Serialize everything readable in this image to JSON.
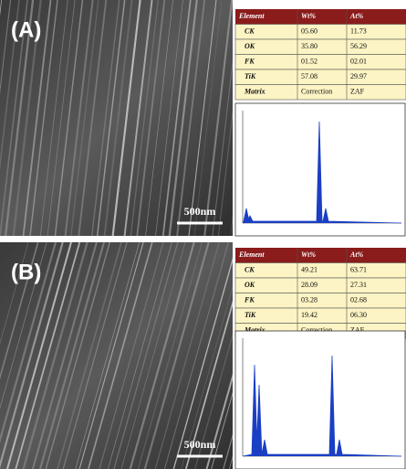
{
  "panels": [
    {
      "label": "(A)",
      "scale_bar": "500nm",
      "table": {
        "header": [
          "Element",
          "Wt%",
          "At%"
        ],
        "rows": [
          [
            "CK",
            "05.60",
            "11.73"
          ],
          [
            "OK",
            "35.80",
            "56.29"
          ],
          [
            "FK",
            "01.52",
            "02.01"
          ],
          [
            "TiK",
            "57.08",
            "29.97"
          ],
          [
            "Matrix",
            "Correction",
            "ZAF"
          ]
        ]
      }
    },
    {
      "label": "(B)",
      "scale_bar": "500nm",
      "table": {
        "header": [
          "Element",
          "Wt%",
          "At%"
        ],
        "rows": [
          [
            "CK",
            "49.21",
            "63.71"
          ],
          [
            "OK",
            "28.09",
            "27.31"
          ],
          [
            "FK",
            "03.28",
            "02.68"
          ],
          [
            "TiK",
            "19.42",
            "06.30"
          ],
          [
            "Matrix",
            "Correction",
            "ZAF"
          ]
        ]
      }
    }
  ]
}
